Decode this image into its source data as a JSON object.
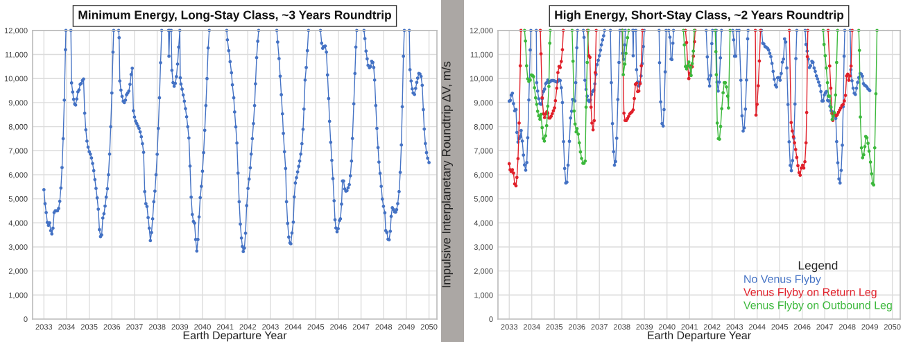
{
  "chart_data": [
    {
      "type": "line",
      "title": "Minimum Energy, Long-Stay Class, ~3 Years Roundtrip",
      "xlabel": "Earth Departure Year",
      "xlim": [
        2032.5,
        2050.35
      ],
      "ylim": [
        0,
        12000
      ],
      "xticks": [
        2033,
        2034,
        2035,
        2036,
        2037,
        2038,
        2039,
        2040,
        2041,
        2042,
        2043,
        2044,
        2045,
        2046,
        2047,
        2048,
        2049,
        2050
      ],
      "yticks": [
        0,
        {
          "value": 1000,
          "label": "1,000"
        },
        {
          "value": 2000,
          "label": "2,000"
        },
        {
          "value": 3000,
          "label": "3,000"
        },
        {
          "value": 4000,
          "label": "4,000"
        },
        {
          "value": 5000,
          "label": "5,000"
        },
        {
          "value": 6000,
          "label": "6,000"
        },
        {
          "value": 7000,
          "label": "7,000"
        },
        {
          "value": 8000,
          "label": "8,000"
        },
        {
          "value": 9000,
          "label": "9,000"
        },
        {
          "value": 10000,
          "label": "10,000"
        },
        {
          "value": 11000,
          "label": "11,000"
        },
        {
          "value": 12000,
          "label": "12,000"
        }
      ],
      "grid": true,
      "marker": "circle",
      "line_style": "solid",
      "series": [
        {
          "color": "#4472c4",
          "x": [
            2033.0,
            2033.05,
            2033.1,
            2033.15,
            2033.2,
            2033.25,
            2033.3,
            2033.35,
            2033.4,
            2033.45,
            2033.5,
            2033.55,
            2033.6,
            2033.65,
            2033.7,
            2033.75,
            2033.8,
            2033.85,
            2033.9,
            2033.95,
            2033.97,
            2034.08,
            2034.19,
            2034.22,
            2034.27,
            2034.31,
            2034.36,
            2034.4,
            2034.45,
            2034.5,
            2034.55,
            2034.6,
            2034.65,
            2034.7,
            2034.75,
            2034.8,
            2034.85,
            2034.9,
            2034.95,
            2035.0,
            2035.05,
            2035.1,
            2035.15,
            2035.2,
            2035.25,
            2035.3,
            2035.35,
            2035.4,
            2035.45,
            2035.5,
            2035.55,
            2035.6,
            2035.65,
            2035.7,
            2035.75,
            2035.8,
            2035.85,
            2035.9,
            2035.95,
            2036.0,
            2036.05,
            2036.08,
            2036.19,
            2036.3,
            2036.32,
            2036.35,
            2036.4,
            2036.45,
            2036.5,
            2036.55,
            2036.6,
            2036.65,
            2036.7,
            2036.75,
            2036.8,
            2036.85,
            2036.9,
            2036.95,
            2037.0,
            2037.05,
            2037.1,
            2037.15,
            2037.2,
            2037.25,
            2037.3,
            2037.35,
            2037.4,
            2037.45,
            2037.5,
            2037.55,
            2037.6,
            2037.65,
            2037.7,
            2037.75,
            2037.8,
            2037.85,
            2037.9,
            2037.95,
            2038.0,
            2038.05,
            2038.1,
            2038.15,
            2038.2,
            2038.35,
            2038.5,
            2038.52,
            2038.55,
            2038.58,
            2038.62,
            2038.65,
            2038.7,
            2038.75,
            2038.8,
            2038.85,
            2038.9,
            2038.95,
            2039.0,
            2039.02,
            2039.05,
            2039.1,
            2039.15,
            2039.2,
            2039.25,
            2039.3,
            2039.35,
            2039.4,
            2039.45,
            2039.5,
            2039.55,
            2039.6,
            2039.65,
            2039.7,
            2039.75,
            2039.8,
            2039.85,
            2039.9,
            2039.95,
            2040.0,
            2040.05,
            2040.1,
            2040.15,
            2040.2,
            2040.25,
            2040.3,
            2040.68,
            2041.07,
            2041.1,
            2041.16,
            2041.22,
            2041.28,
            2041.32,
            2041.38,
            2041.42,
            2041.47,
            2041.52,
            2041.57,
            2041.62,
            2041.67,
            2041.72,
            2041.76,
            2041.8,
            2041.85,
            2041.9,
            2041.95,
            2042.01,
            2042.06,
            2042.11,
            2042.15,
            2042.2,
            2042.25,
            2042.3,
            2042.34,
            2042.39,
            2042.44,
            2042.48,
            2042.88,
            2043.28,
            2043.32,
            2043.38,
            2043.43,
            2043.48,
            2043.53,
            2043.57,
            2043.62,
            2043.67,
            2043.71,
            2043.76,
            2043.81,
            2043.86,
            2043.9,
            2043.95,
            2044.01,
            2044.05,
            2044.1,
            2044.15,
            2044.2,
            2044.25,
            2044.29,
            2044.34,
            2044.39,
            2044.44,
            2044.48,
            2044.53,
            2044.58,
            2044.63,
            2044.68,
            2044.95,
            2045.21,
            2045.26,
            2045.31,
            2045.37,
            2045.42,
            2045.47,
            2045.52,
            2045.57,
            2045.61,
            2045.66,
            2045.71,
            2045.76,
            2045.81,
            2045.85,
            2045.89,
            2045.94,
            2045.99,
            2046.05,
            2046.09,
            2046.14,
            2046.18,
            2046.23,
            2046.28,
            2046.33,
            2046.38,
            2046.43,
            2046.48,
            2046.53,
            2046.58,
            2046.62,
            2046.68,
            2046.73,
            2046.77,
            2046.81,
            2046.97,
            2047.13,
            2047.17,
            2047.22,
            2047.27,
            2047.31,
            2047.37,
            2047.42,
            2047.47,
            2047.52,
            2047.56,
            2047.6,
            2047.65,
            2047.7,
            2047.75,
            2047.79,
            2047.84,
            2047.89,
            2047.94,
            2047.99,
            2048.05,
            2048.09,
            2048.14,
            2048.19,
            2048.24,
            2048.29,
            2048.33,
            2048.38,
            2048.43,
            2048.48,
            2048.53,
            2048.57,
            2048.62,
            2048.68,
            2048.73,
            2048.78,
            2048.82,
            2048.87,
            2048.91,
            2049.02,
            2049.13,
            2049.16,
            2049.21,
            2049.26,
            2049.3,
            2049.36,
            2049.41,
            2049.46,
            2049.5,
            2049.55,
            2049.6,
            2049.65,
            2049.7,
            2049.75,
            2049.79,
            2049.84,
            2049.89,
            2049.94,
            2050.0
          ],
          "values": [
            5380,
            4800,
            4430,
            4020,
            3900,
            4000,
            3680,
            3540,
            3780,
            4430,
            4500,
            4500,
            4500,
            4600,
            4900,
            5450,
            6300,
            7500,
            9100,
            11200,
            12000,
            null,
            12000,
            9820,
            9440,
            9140,
            8940,
            8900,
            9150,
            9450,
            9530,
            9760,
            9800,
            9920,
            9980,
            8560,
            7870,
            7400,
            7150,
            6960,
            6860,
            6700,
            6470,
            6170,
            5800,
            5430,
            5040,
            4570,
            3720,
            3430,
            3500,
            4200,
            4380,
            4700,
            5070,
            5420,
            6000,
            6860,
            8000,
            9400,
            11100,
            12000,
            null,
            12000,
            11700,
            9900,
            9520,
            9260,
            9060,
            9000,
            9100,
            9330,
            9400,
            9480,
            9760,
            10170,
            10430,
            8660,
            8400,
            8230,
            8130,
            8030,
            7930,
            7780,
            7580,
            7290,
            6930,
            5300,
            4800,
            4680,
            4220,
            3780,
            3260,
            3600,
            4170,
            4880,
            5320,
            6000,
            6850,
            7930,
            9200,
            10660,
            12000,
            null,
            12000,
            10930,
            12000,
            null,
            12000,
            10340,
            9830,
            9680,
            9800,
            10080,
            10600,
            11310,
            12000,
            10030,
            9770,
            9560,
            9320,
            9060,
            8750,
            8410,
            8000,
            7530,
            6360,
            5070,
            4350,
            4060,
            3990,
            3310,
            2830,
            3310,
            4250,
            5050,
            5520,
            6150,
            6920,
            7850,
            8880,
            10000,
            11270,
            12000,
            null,
            12000,
            11610,
            11160,
            10700,
            10240,
            9740,
            9200,
            8610,
            7990,
            7320,
            6070,
            4880,
            3950,
            3370,
            3020,
            2810,
            2950,
            3570,
            4720,
            5430,
            5820,
            6290,
            6860,
            7500,
            8130,
            8880,
            9780,
            10870,
            11550,
            12000,
            null,
            12000,
            11520,
            10830,
            10100,
            9330,
            8530,
            7720,
            6960,
            6260,
            4880,
            3980,
            3410,
            3170,
            3130,
            3580,
            4030,
            5080,
            5660,
            5880,
            6120,
            6350,
            6570,
            6860,
            7290,
            7890,
            8730,
            9940,
            10460,
            11160,
            12000,
            null,
            12000,
            11470,
            11260,
            11330,
            11350,
            11100,
            10150,
            9170,
            8220,
            7350,
            6600,
            5840,
            4920,
            4130,
            3790,
            3630,
            3760,
            4100,
            4170,
            4780,
            5740,
            5740,
            5410,
            5320,
            5340,
            5460,
            5590,
            5960,
            6570,
            7510,
            8950,
            10210,
            11310,
            12000,
            null,
            12000,
            11660,
            11140,
            10820,
            10550,
            10450,
            10500,
            10720,
            10670,
            10460,
            9940,
            8880,
            7930,
            7130,
            6530,
            6060,
            5520,
            4990,
            4690,
            4420,
            3680,
            3600,
            3320,
            3300,
            3650,
            4270,
            4630,
            4560,
            4460,
            4450,
            4550,
            4800,
            5300,
            6100,
            7240,
            8830,
            10930,
            12000,
            null,
            12000,
            10370,
            9900,
            9570,
            9400,
            9340,
            9590,
            9840,
            10020,
            10210,
            10190,
            10090,
            9720,
            8710,
            7900,
            7300,
            6920,
            6690,
            6510
          ]
        }
      ]
    },
    {
      "type": "line",
      "title": "High Energy, Short-Stay Class, ~2 Years Roundtrip",
      "xlabel": "Earth Departure Year",
      "ylabel": "Impulsive Interplanetary Roundtrip ΔV, m/s",
      "xlim": [
        2032.5,
        2050.35
      ],
      "ylim": [
        0,
        12000
      ],
      "xticks": [
        2033,
        2034,
        2035,
        2036,
        2037,
        2038,
        2039,
        2040,
        2041,
        2042,
        2043,
        2044,
        2045,
        2046,
        2047,
        2048,
        2049,
        2050
      ],
      "yticks": [
        0,
        {
          "value": 1000,
          "label": "1,000"
        },
        {
          "value": 2000,
          "label": "2,000"
        },
        {
          "value": 3000,
          "label": "3,000"
        },
        {
          "value": 4000,
          "label": "4,000"
        },
        {
          "value": 5000,
          "label": "5,000"
        },
        {
          "value": 6000,
          "label": "6,000"
        },
        {
          "value": 7000,
          "label": "7,000"
        },
        {
          "value": 8000,
          "label": "8,000"
        },
        {
          "value": 9000,
          "label": "9,000"
        },
        {
          "value": 10000,
          "label": "10,000"
        },
        {
          "value": 11000,
          "label": "11,000"
        },
        {
          "value": 12000,
          "label": "12,000"
        }
      ],
      "grid": true,
      "marker": "circle",
      "line_style": "solid",
      "legend": "bottom right",
      "legend_title": "Legend",
      "series": [
        {
          "name": "No Venus Flyby",
          "color": "#4472c4",
          "x": [
            2033.0,
            2033.05,
            2033.09,
            2033.14,
            2033.19,
            2033.24,
            2033.3,
            2033.34,
            2033.39,
            2033.44,
            2033.49,
            2033.53,
            2033.58,
            2033.63,
            2033.68,
            2033.73,
            2033.78,
            2033.82,
            2033.87,
            2033.93,
            2033.96,
            2034.08,
            2034.2,
            2034.22,
            2034.26,
            2034.31,
            2034.36,
            2034.41,
            2034.46,
            2034.52,
            2034.57,
            2034.62,
            2034.66,
            2034.71,
            2034.76,
            2034.81,
            2034.86,
            2034.91,
            2034.96,
            2035.01,
            2035.07,
            2035.12,
            2035.16,
            2035.21,
            2035.26,
            2035.31,
            2035.36,
            2035.41,
            2035.46,
            2035.51,
            2035.56,
            2035.61,
            2035.67,
            2035.72,
            2035.77,
            2035.81,
            2035.86,
            2035.91,
            2035.95,
            2036.0,
            2036.03,
            2036.16,
            2036.29,
            2036.32,
            2036.36,
            2036.41,
            2036.46,
            2036.51,
            2036.56,
            2036.6,
            2036.65,
            2036.7,
            2036.75,
            2036.8,
            2036.85,
            2036.9,
            2036.95,
            2037.0,
            2037.05,
            2037.09,
            2037.14,
            2037.19,
            2037.23,
            2037.36,
            2037.49,
            2037.53,
            2037.58,
            2037.63,
            2037.67,
            2037.72,
            2037.77,
            2037.82,
            2037.87,
            2037.91,
            2037.96,
            2038.01,
            2038.03,
            2038.08,
            2038.13,
            2038.15,
            2038.32,
            2038.48,
            2038.5,
            2038.52,
            2038.57,
            2038.62,
            2038.65,
            2038.7,
            2038.75,
            2038.8,
            2038.85,
            2038.9,
            2038.95,
            2038.99,
            2039.32,
            2039.65,
            2039.67,
            2039.72,
            2039.78,
            2039.83,
            2039.87,
            2039.92,
            2039.96,
            2040.02,
            2040.08,
            2040.13,
            2040.18,
            2040.22,
            2040.26,
            2040.29,
            2041.0,
            2041.74,
            2041.79,
            2041.84,
            2041.89,
            2041.94,
            2041.99,
            2042.02,
            2042.1,
            2042.19,
            2042.22,
            2042.27,
            2042.32,
            2042.37,
            2042.42,
            2042.67,
            2042.92,
            2042.96,
            2043.0,
            2043.05,
            2043.1,
            2043.15,
            2043.2,
            2043.28,
            2043.33,
            2043.38,
            2043.43,
            2043.48,
            2043.53,
            2043.58,
            2043.6,
            2043.9,
            2044.2,
            2044.25,
            2044.3,
            2044.35,
            2044.4,
            2044.46,
            2044.51,
            2044.56,
            2044.61,
            2044.66,
            2044.71,
            2044.76,
            2044.81,
            2044.86,
            2044.91,
            2044.96,
            2045.02,
            2045.07,
            2045.12,
            2045.17,
            2045.22,
            2045.27,
            2045.32,
            2045.37,
            2045.42,
            2045.47,
            2045.52,
            2045.57,
            2045.63,
            2045.68,
            2045.72,
            2045.76,
            2045.95,
            2046.13,
            2046.17,
            2046.22,
            2046.27,
            2046.32,
            2046.37,
            2046.43,
            2046.48,
            2046.53,
            2046.58,
            2046.63,
            2046.68,
            2046.73,
            2046.78,
            2046.83,
            2046.88,
            2046.93,
            2046.98,
            2047.03,
            2047.08,
            2047.13,
            2047.18,
            2047.23,
            2047.28,
            2047.33,
            2047.39,
            2047.44,
            2047.49,
            2047.53,
            2047.58,
            2047.63,
            2047.68,
            2047.73,
            2047.78,
            2047.82,
            2047.86,
            2047.89,
            2048.01,
            2048.13,
            2048.16,
            2048.21,
            2048.26,
            2048.31,
            2048.36,
            2048.41,
            2048.46,
            2048.51,
            2048.57,
            2048.62,
            2048.67,
            2048.72,
            2048.77,
            2048.82,
            2048.87,
            2048.92,
            2048.97,
            2049.0
          ],
          "values": [
            9060,
            9090,
            9310,
            9390,
            8960,
            8660,
            8710,
            7760,
            7360,
            7500,
            7590,
            7840,
            7400,
            6820,
            6410,
            6190,
            6510,
            7540,
            9110,
            11190,
            12000,
            null,
            12000,
            9830,
            9480,
            9160,
            8960,
            8930,
            9160,
            9460,
            9560,
            9790,
            9830,
            9940,
            9830,
            9870,
            9910,
            9920,
            9920,
            9900,
            9870,
            9850,
            9890,
            9950,
            9920,
            9620,
            9000,
            7380,
            6260,
            5660,
            5690,
            6400,
            7390,
            8360,
            8640,
            9130,
            9110,
            9070,
            9830,
            11280,
            12000,
            null,
            12000,
            11710,
            9930,
            9550,
            9270,
            9090,
            9040,
            9110,
            9340,
            9460,
            9520,
            9780,
            10180,
            10580,
            10760,
            10950,
            11180,
            11400,
            11610,
            11780,
            12000,
            null,
            12000,
            9830,
            8130,
            6960,
            6400,
            6550,
            7520,
            9130,
            10670,
            12000,
            null,
            12000,
            11050,
            10800,
            11400,
            12000,
            null,
            12000,
            10950,
            12000,
            null,
            12000,
            10370,
            9860,
            9690,
            9840,
            10110,
            10620,
            11330,
            12000,
            null,
            12000,
            10660,
            9030,
            8130,
            8030,
            8710,
            10280,
            12000,
            null,
            12000,
            11720,
            10810,
            10790,
            11470,
            12000,
            null,
            12000,
            10900,
            9980,
            9690,
            10130,
            11450,
            12000,
            null,
            12000,
            9850,
            9480,
            9850,
            10860,
            12000,
            null,
            12000,
            11610,
            10930,
            10930,
            12000,
            null,
            12000,
            9930,
            8450,
            7820,
            7950,
            8730,
            9940,
            11650,
            12000,
            null,
            12000,
            11470,
            11440,
            11330,
            11310,
            11260,
            11190,
            11050,
            10910,
            10630,
            10300,
            9970,
            9730,
            9650,
            10030,
            10040,
            9930,
            10210,
            10680,
            10810,
            11650,
            11520,
            10440,
            8920,
            7370,
            6390,
            6170,
            6590,
            7520,
            8940,
            10830,
            12000,
            null,
            12000,
            11420,
            11140,
            10810,
            10460,
            10530,
            10720,
            10670,
            10440,
            10300,
            10110,
            9990,
            9850,
            9710,
            9460,
            9070,
            9070,
            9320,
            9410,
            9460,
            9090,
            9070,
            8850,
            8670,
            8620,
            8600,
            8490,
            8340,
            7380,
            6500,
            5830,
            5660,
            6180,
            7230,
            8830,
            10930,
            12000,
            null,
            12000,
            10370,
            9910,
            9600,
            9390,
            9340,
            9600,
            9840,
            10040,
            10210,
            10190,
            10100,
            9790,
            9720,
            9700,
            9650,
            9570,
            9530,
            9500
          ]
        },
        {
          "name": "Venus Flyby on Return Leg",
          "color": "#e0202a",
          "x": [
            2033.0,
            2033.04,
            2033.09,
            2033.14,
            2033.19,
            2033.24,
            2033.3,
            2033.34,
            2033.39,
            2033.44,
            2033.49,
            2033.52,
            2033.95,
            2034.38,
            2034.41,
            2034.46,
            2034.52,
            2034.57,
            2034.62,
            2034.67,
            2034.71,
            2034.76,
            2034.81,
            2034.86,
            2034.91,
            2034.96,
            2035.01,
            2035.05,
            2035.11,
            2035.16,
            2035.21,
            2035.26,
            2035.31,
            2035.36,
            2035.4,
            2035.9,
            2036.47,
            2036.53,
            2036.58,
            2036.63,
            2036.67,
            2036.72,
            2036.77,
            2036.82,
            2036.86,
            2037.45,
            2038.02,
            2038.09,
            2038.14,
            2038.2,
            2038.25,
            2038.3,
            2038.35,
            2038.4,
            2038.45,
            2038.5,
            2038.55,
            2038.6,
            2038.65,
            2038.7,
            2038.75,
            2038.81,
            2038.86,
            2038.91,
            2039.85,
            2040.82,
            2040.87,
            2040.92,
            2040.97,
            2041.02,
            2041.07,
            2041.12,
            2041.17,
            2041.22,
            2041.25,
            2042.6,
            2043.92,
            2043.95,
            2044.0,
            2044.05,
            2044.1,
            2044.15,
            2044.8,
            2045.43,
            2045.51,
            2045.56,
            2045.61,
            2045.66,
            2045.71,
            2045.76,
            2045.81,
            2045.86,
            2045.91,
            2045.96,
            2046.02,
            2046.07,
            2046.12,
            2046.17,
            2046.2,
            2046.23,
            2046.25,
            2046.7,
            2047.15,
            2047.22,
            2047.27,
            2047.32,
            2047.36,
            2047.41,
            2047.46,
            2047.51,
            2047.56,
            2047.61,
            2047.66,
            2047.71,
            2047.76,
            2047.82,
            2047.87,
            2047.92,
            2047.97,
            2048.02,
            2048.07,
            2048.12,
            2048.17,
            2048.22
          ],
          "values": [
            6460,
            6210,
            6130,
            6210,
            6070,
            5620,
            5540,
            5890,
            6670,
            8150,
            10530,
            12000,
            null,
            12000,
            11030,
            9200,
            8530,
            8380,
            8530,
            8620,
            8560,
            8360,
            8360,
            8430,
            8540,
            8660,
            8780,
            9080,
            9600,
            10250,
            10500,
            10460,
            10710,
            11200,
            12000,
            null,
            12000,
            10950,
            10880,
            8810,
            8150,
            7870,
            8250,
            10250,
            12000,
            null,
            12000,
            8560,
            8260,
            8260,
            8340,
            8430,
            8530,
            8580,
            8620,
            8700,
            9170,
            9760,
            9810,
            9460,
            9480,
            9790,
            10530,
            12000,
            null,
            12000,
            11500,
            10530,
            10000,
            10210,
            10530,
            10490,
            10930,
            11530,
            12000,
            null,
            12000,
            8480,
            8930,
            9700,
            10730,
            12000,
            null,
            12000,
            8170,
            7820,
            7580,
            7330,
            7050,
            6720,
            6380,
            6090,
            5980,
            6280,
            6400,
            6280,
            6540,
            7330,
            8590,
            10910,
            12000,
            null,
            12000,
            10520,
            9600,
            8550,
            8260,
            8520,
            8480,
            8450,
            8500,
            8600,
            8690,
            8780,
            8880,
            8930,
            9070,
            9300,
            10110,
            10180,
            9930,
            10110,
            10520,
            12000
          ]
        },
        {
          "name": "Venus Flyby on Outbound Leg",
          "color": "#3cb83c",
          "x": [
            2033.68,
            2033.72,
            2033.77,
            2033.82,
            2033.87,
            2033.93,
            2033.98,
            2034.03,
            2034.08,
            2034.12,
            2034.17,
            2034.22,
            2034.26,
            2034.31,
            2034.36,
            2034.41,
            2034.46,
            2034.51,
            2034.56,
            2034.61,
            2034.66,
            2034.71,
            2034.76,
            2034.8,
            2034.82,
            2035.3,
            2035.79,
            2035.83,
            2035.88,
            2035.92,
            2035.97,
            2036.01,
            2036.06,
            2036.11,
            2036.16,
            2036.21,
            2036.27,
            2036.32,
            2036.37,
            2036.41,
            2036.46,
            2036.51,
            2037.2,
            2038.03,
            2038.06,
            2038.13,
            2038.18,
            2038.25,
            2038.3,
            2039.5,
            2040.73,
            2040.77,
            2040.82,
            2040.87,
            2040.92,
            2040.97,
            2041.02,
            2041.07,
            2041.12,
            2041.17,
            2041.21,
            2041.7,
            2042.14,
            2042.17,
            2042.19,
            2042.23,
            2042.28,
            2042.33,
            2042.38,
            2042.43,
            2042.49,
            2042.54,
            2042.59,
            2042.64,
            2042.69,
            2042.73,
            2042.8,
            2044.9,
            2046.93,
            2046.97,
            2047.02,
            2047.07,
            2047.12,
            2047.17,
            2047.23,
            2047.28,
            2047.33,
            2047.38,
            2047.43,
            2047.48,
            2047.53,
            2047.57,
            2048.05,
            2048.51,
            2048.54,
            2048.58,
            2048.63,
            2048.68,
            2048.73,
            2048.78,
            2048.82,
            2048.87,
            2048.92,
            2048.97,
            2049.03,
            2049.08,
            2049.12,
            2049.17,
            2049.22,
            2049.27,
            2049.32
          ],
          "values": [
            12000,
            11560,
            10530,
            9990,
            9880,
            9940,
            10150,
            10130,
            10080,
            9620,
            9200,
            8930,
            8640,
            8450,
            8310,
            8510,
            7960,
            7510,
            7400,
            7620,
            8040,
            8850,
            9670,
            11470,
            12000,
            null,
            12000,
            10720,
            8650,
            8110,
            7780,
            7920,
            7690,
            7330,
            6950,
            6680,
            6480,
            6480,
            6570,
            8810,
            10670,
            12000,
            null,
            12000,
            10160,
            10600,
            11050,
            11700,
            12000,
            null,
            12000,
            11400,
            10500,
            10400,
            10530,
            10690,
            10480,
            10130,
            10620,
            11140,
            12000,
            null,
            12000,
            11120,
            10160,
            8150,
            7500,
            7480,
            8010,
            8750,
            9410,
            9830,
            9830,
            9650,
            9270,
            8780,
            12000,
            null,
            12000,
            11420,
            10950,
            10440,
            9830,
            9270,
            9270,
            8810,
            8300,
            8440,
            8580,
            9320,
            10670,
            12000,
            null,
            12000,
            11170,
            8400,
            7120,
            6710,
            6830,
            7170,
            7590,
            7540,
            7310,
            6980,
            6530,
            6040,
            5640,
            5580,
            7120,
            9370,
            12000
          ]
        }
      ]
    }
  ]
}
